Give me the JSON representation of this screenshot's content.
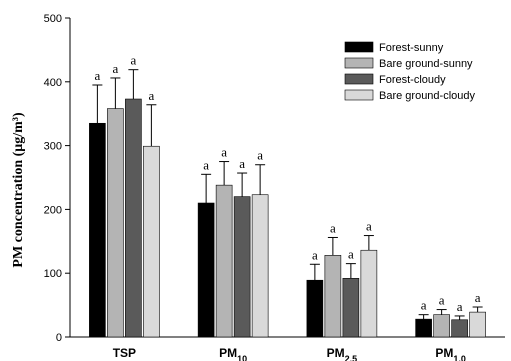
{
  "chart_data": {
    "type": "bar",
    "ylabel": "PM concentration (μg/m³)",
    "ylim": [
      0,
      500
    ],
    "yticks": [
      0,
      100,
      200,
      300,
      400,
      500
    ],
    "categories": [
      {
        "base": "TSP",
        "sub": ""
      },
      {
        "base": "PM",
        "sub": "10"
      },
      {
        "base": "PM",
        "sub": "2.5"
      },
      {
        "base": "PM",
        "sub": "1.0"
      }
    ],
    "series": [
      {
        "name": "Forest-sunny",
        "color": "#000000",
        "values": [
          335,
          210,
          89,
          28
        ],
        "errors": [
          60,
          45,
          25,
          7
        ],
        "labels": [
          "a",
          "a",
          "a",
          "a"
        ]
      },
      {
        "name": "Bare ground-sunny",
        "color": "#b4b4b4",
        "values": [
          358,
          238,
          128,
          35
        ],
        "errors": [
          48,
          37,
          28,
          8
        ],
        "labels": [
          "a",
          "a",
          "a",
          "a"
        ]
      },
      {
        "name": "Forest-cloudy",
        "color": "#5a5a5a",
        "values": [
          373,
          220,
          92,
          27
        ],
        "errors": [
          46,
          37,
          23,
          6
        ],
        "labels": [
          "a",
          "a",
          "a",
          "a"
        ]
      },
      {
        "name": "Bare ground-cloudy",
        "color": "#d9d9d9",
        "values": [
          299,
          223,
          136,
          39
        ],
        "errors": [
          65,
          47,
          23,
          8
        ],
        "labels": [
          "a",
          "a",
          "a",
          "a"
        ]
      }
    ],
    "legend_position": "top-right",
    "grid": false
  }
}
